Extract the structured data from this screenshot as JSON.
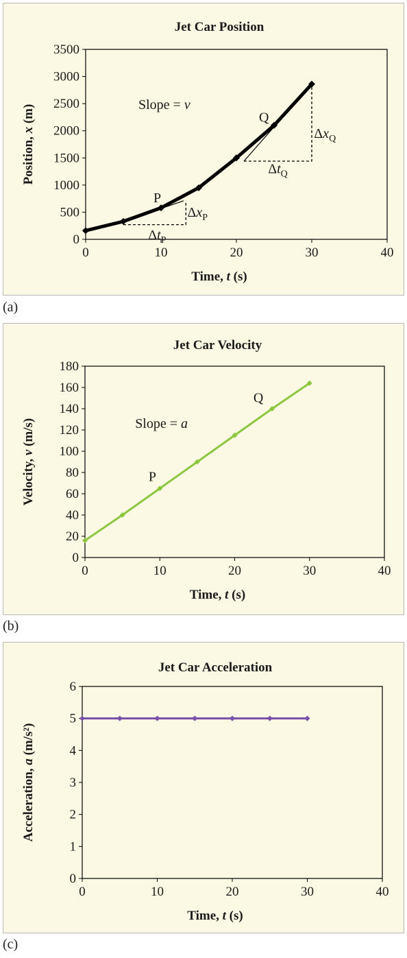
{
  "chart_data": [
    {
      "type": "line",
      "panel_label": "(a)",
      "title": "Jet Car Position",
      "xlabel": "Time,",
      "xlabel_var": "t",
      "xlabel_unit": "(s)",
      "ylabel": "Position,",
      "ylabel_var": "x",
      "ylabel_unit": "(m)",
      "xlim": [
        0,
        40
      ],
      "ylim": [
        0,
        3500
      ],
      "xticks": [
        0,
        10,
        20,
        30,
        40
      ],
      "yticks": [
        0,
        500,
        1000,
        1500,
        2000,
        2500,
        3000,
        3500
      ],
      "color": "#000000",
      "series": [
        {
          "x": [
            0,
            5,
            10,
            15,
            20,
            25,
            30
          ],
          "y": [
            160,
            330,
            580,
            950,
            1500,
            2100,
            2860
          ]
        }
      ],
      "annotations": {
        "slope_text": "Slope = ",
        "slope_var": "v",
        "point_p": "P",
        "point_q": "Q",
        "delta": "Δ",
        "x_var": "x",
        "t_var": "t",
        "sub_p": "P",
        "sub_q": "Q"
      }
    },
    {
      "type": "line",
      "panel_label": "(b)",
      "title": "Jet Car Velocity",
      "xlabel": "Time,",
      "xlabel_var": "t",
      "xlabel_unit": "(s)",
      "ylabel": "Velocity,",
      "ylabel_var": "v",
      "ylabel_unit": "(m/s)",
      "xlim": [
        0,
        40
      ],
      "ylim": [
        0,
        180
      ],
      "xticks": [
        0,
        10,
        20,
        30,
        40
      ],
      "yticks": [
        0,
        20,
        40,
        60,
        80,
        100,
        120,
        140,
        160,
        180
      ],
      "color": "#8dc63f",
      "series": [
        {
          "x": [
            0,
            5,
            10,
            15,
            20,
            25,
            30
          ],
          "y": [
            16,
            40,
            65,
            90,
            115,
            140,
            164
          ]
        }
      ],
      "annotations": {
        "slope_text": "Slope = ",
        "slope_var": "a",
        "point_p": "P",
        "point_q": "Q"
      }
    },
    {
      "type": "line",
      "panel_label": "(c)",
      "title": "Jet Car Acceleration",
      "xlabel": "Time,",
      "xlabel_var": "t",
      "xlabel_unit": "(s)",
      "ylabel": "Acceleration,",
      "ylabel_var": "a",
      "ylabel_unit": "(m/s²)",
      "xlim": [
        0,
        40
      ],
      "ylim": [
        0,
        6
      ],
      "xticks": [
        0,
        10,
        20,
        30,
        40
      ],
      "yticks": [
        0,
        1,
        2,
        3,
        4,
        5,
        6
      ],
      "color": "#7a4fa8",
      "series": [
        {
          "x": [
            0,
            5,
            10,
            15,
            20,
            25,
            30
          ],
          "y": [
            5,
            5,
            5,
            5,
            5,
            5,
            5
          ]
        }
      ]
    }
  ]
}
